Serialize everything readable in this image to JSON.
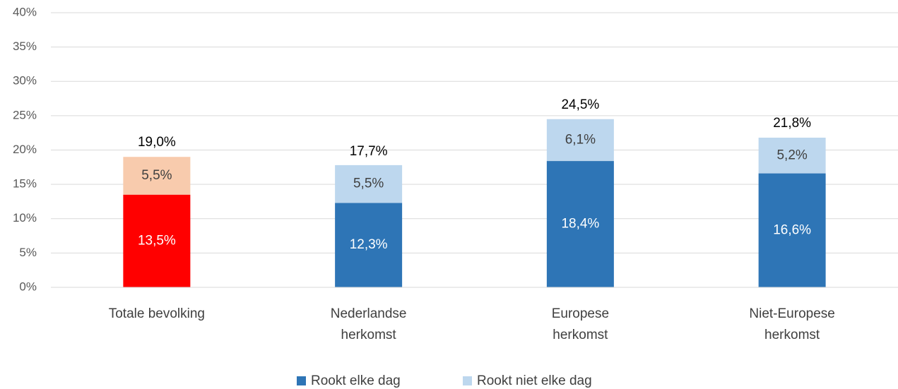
{
  "chart_data": {
    "type": "stacked_bar",
    "categories": [
      [
        "Totale bevolking"
      ],
      [
        "Nederlandse",
        "herkomst"
      ],
      [
        "Europese",
        "herkomst"
      ],
      [
        "Niet-Europese",
        "herkomst"
      ]
    ],
    "series": [
      {
        "name": "Rookt elke dag",
        "color": "#2e75b6",
        "colors": [
          "#ff0000",
          "#2e75b6",
          "#2e75b6",
          "#2e75b6"
        ],
        "label_color": "#ffffff",
        "values": [
          13.5,
          12.3,
          18.4,
          16.6
        ],
        "value_labels": [
          "13,5%",
          "12,3%",
          "18,4%",
          "16,6%"
        ]
      },
      {
        "name": "Rookt niet elke dag",
        "color": "#bdd7ee",
        "colors": [
          "#f8cbad",
          "#bdd7ee",
          "#bdd7ee",
          "#bdd7ee"
        ],
        "label_color": "#404040",
        "values": [
          5.5,
          5.5,
          6.1,
          5.2
        ],
        "value_labels": [
          "5,5%",
          "5,5%",
          "6,1%",
          "5,2%"
        ]
      }
    ],
    "totals": [
      19.0,
      17.7,
      24.5,
      21.8
    ],
    "total_labels": [
      "19,0%",
      "17,7%",
      "24,5%",
      "21,8%"
    ],
    "ylim": [
      0,
      40
    ],
    "yticks": [
      {
        "value": 0,
        "label": "0%"
      },
      {
        "value": 5,
        "label": "5%"
      },
      {
        "value": 10,
        "label": "10%"
      },
      {
        "value": 15,
        "label": "15%"
      },
      {
        "value": 20,
        "label": "20%"
      },
      {
        "value": 25,
        "label": "25%"
      },
      {
        "value": 30,
        "label": "30%"
      },
      {
        "value": 35,
        "label": "35%"
      },
      {
        "value": 40,
        "label": "40%"
      }
    ],
    "grid": true,
    "legend": "bottom"
  }
}
